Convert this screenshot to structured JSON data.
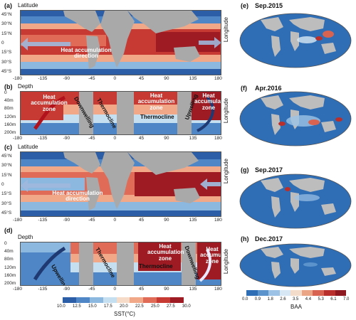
{
  "panels": {
    "a": {
      "label": "(a)",
      "axis_title": "Latitude",
      "heat_direction": "Heat accumulation direction",
      "side": "Longitude"
    },
    "b": {
      "label": "(b)",
      "axis_title": "Depth",
      "zone1": "Heat accumulation zone",
      "downwelling": "Downwelling",
      "thermocline1": "Thermocline",
      "zone2": "Heat accumulation zone",
      "thermocline2": "Thermocline",
      "upwelling": "Upwelling",
      "zone3": "Heat accumulation zone",
      "side": "Longitude"
    },
    "c": {
      "label": "(c)",
      "axis_title": "Latitude",
      "heat_direction": "Heat accumulation direction",
      "side": "Longitude"
    },
    "d": {
      "label": "(d)",
      "axis_title": "Depth",
      "upwelling": "Upwelling",
      "thermocline1": "Thermocline",
      "zone1": "Heat accumulation zone",
      "thermocline2": "Thermocline",
      "downwelling": "Downwelling",
      "zone2": "Heat accumulation zone",
      "side": "Longitude"
    },
    "e": {
      "label": "(e)",
      "title": "Sep.2015"
    },
    "f": {
      "label": "(f)",
      "title": "Apr.2016"
    },
    "g": {
      "label": "(g)",
      "title": "Sep.2017"
    },
    "h": {
      "label": "(h)",
      "title": "Dec.2017"
    }
  },
  "lat_ticks": [
    "45°N",
    "30°N",
    "15°N",
    "0",
    "15°S",
    "30°S",
    "45°S"
  ],
  "depth_ticks": [
    "0",
    "40m",
    "80m",
    "120m",
    "160m",
    "200m"
  ],
  "lon_ticks": [
    "-180",
    "-135",
    "-90",
    "-45",
    "0",
    "45",
    "90",
    "135",
    "180"
  ],
  "sst_colorbar": {
    "title": "SST(°C)",
    "ticks": [
      "10.0",
      "12.5",
      "15.0",
      "17.5",
      "20.0",
      "22.5",
      "25.0",
      "27.5",
      "30.0"
    ],
    "colors": [
      "#2c5ea8",
      "#4f86c6",
      "#8cb7de",
      "#c6dff0",
      "#f6dcc8",
      "#f0a889",
      "#e06c58",
      "#c73a33",
      "#9e1b23"
    ]
  },
  "baa_colorbar": {
    "title": "BAA",
    "ticks": [
      "0.0",
      "0.9",
      "1.8",
      "2.6",
      "3.5",
      "4.4",
      "5.3",
      "6.1",
      "7.0"
    ],
    "colors": [
      "#2f6db5",
      "#5b93cc",
      "#9cc3e5",
      "#d7e8f4",
      "#f3dcc9",
      "#eaa486",
      "#d86350",
      "#b92f2b",
      "#8e1820"
    ]
  },
  "colors": {
    "warm": "#c0262b",
    "hot": "#9e1b23",
    "mid": "#f0a889",
    "cool": "#8cb7de",
    "cold": "#2c5ea8",
    "land": "#a9a9a9",
    "arrow": "#9fb7dc",
    "darkarrow": "#1f3a73"
  }
}
